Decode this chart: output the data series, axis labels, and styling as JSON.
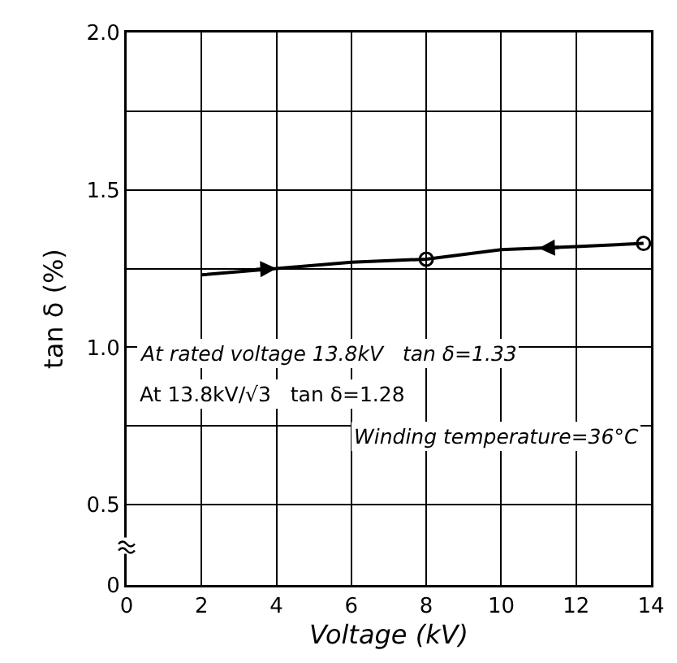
{
  "chart_data": {
    "type": "line",
    "xlabel": "Voltage (kV)",
    "ylabel": "tan δ (%)",
    "xlim": [
      0,
      14
    ],
    "xticks": [
      0,
      2,
      4,
      6,
      8,
      10,
      12,
      14
    ],
    "ylim": [
      0.245,
      2.0
    ],
    "yticks": [
      {
        "value": 0.245,
        "label": "0"
      },
      0.5,
      {
        "value": 0.75,
        "label": null
      },
      {
        "value": 1.0,
        "label": "1.0"
      },
      {
        "value": 1.25,
        "label": null
      },
      1.5,
      {
        "value": 1.75,
        "label": null
      },
      {
        "value": 2.0,
        "label": "2.0"
      }
    ],
    "grid": true,
    "series": [
      {
        "type": "line",
        "color": "#000000",
        "marker": "none",
        "x": [
          2,
          6,
          8,
          10,
          12,
          13.8
        ],
        "values": [
          1.23,
          1.27,
          1.28,
          1.31,
          1.32,
          1.33
        ]
      },
      {
        "type": "scatter",
        "color": "#000000",
        "marker": "circle",
        "x": [
          8,
          13.8
        ],
        "values": [
          1.28,
          1.33
        ]
      }
    ],
    "annotations": [
      "At rated voltage 13.8kV   tan δ=1.33",
      "At 13.8kV/√3   tan δ=1.28",
      "Winding temperature=36°C"
    ]
  }
}
